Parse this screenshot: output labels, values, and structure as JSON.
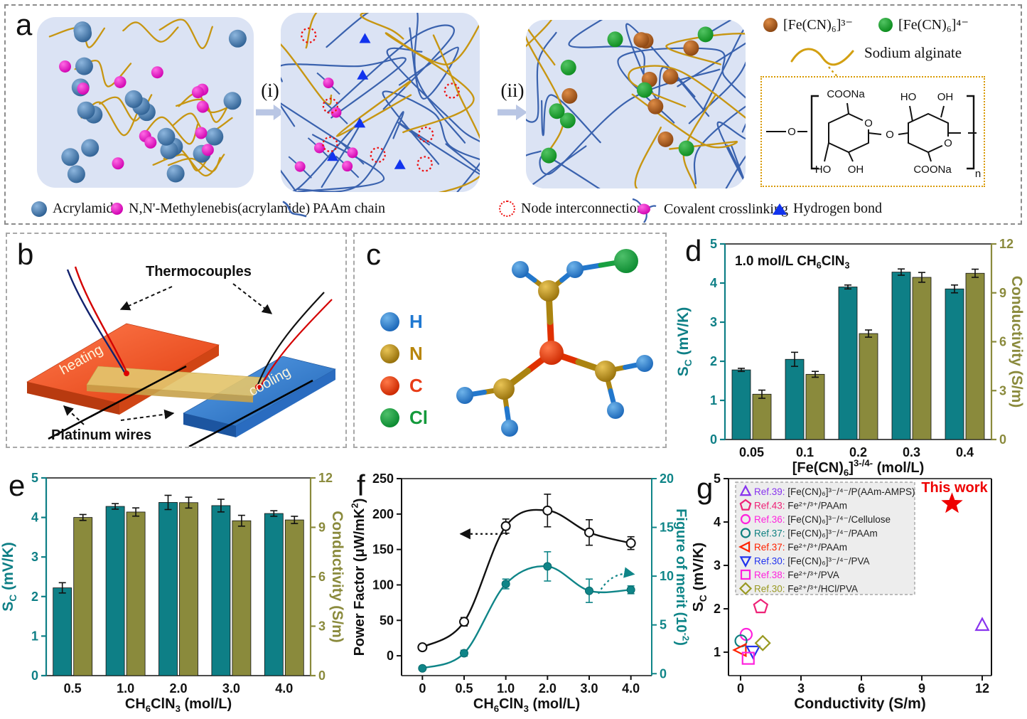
{
  "figure": {
    "panel_labels": {
      "a": "a",
      "b": "b",
      "c": "c",
      "d": "d",
      "e": "e",
      "f": "f",
      "g": "g"
    }
  },
  "panel_a": {
    "top_legend": [
      {
        "name": "ferricyanide",
        "label": "[Fe(CN)₆]³⁻",
        "color": "#b3591d"
      },
      {
        "name": "ferrocyanide",
        "label": "[Fe(CN)₆]⁴⁻",
        "color": "#179a2c"
      }
    ],
    "sodium_alginate_label": "Sodium alginate",
    "structure": {
      "carboxylate": "COONa",
      "ho": "HO",
      "oh": "OH",
      "oxygen": "O",
      "repeat": "n"
    },
    "steps": {
      "i": "(i)",
      "ii": "(ii)"
    },
    "bottom_legend": [
      {
        "name": "acrylamide",
        "label": "Acrylamide"
      },
      {
        "name": "mba",
        "label": "N,N'-Methylenebis(acrylamide)"
      },
      {
        "name": "paam-chain",
        "label": "PAAm chain"
      },
      {
        "name": "node-interconnection",
        "label": "Node interconnection"
      },
      {
        "name": "covalent-crosslinking",
        "label": "Covalent crosslinking"
      },
      {
        "name": "hydrogen-bond",
        "label": "Hydrogen bond"
      }
    ]
  },
  "panel_b": {
    "labels": {
      "thermocouples": "Thermocouples",
      "heating": "heating",
      "cooling": "cooling",
      "platinum": "Platinum  wires"
    }
  },
  "panel_c": {
    "legend": [
      {
        "symbol": "H",
        "color": "#1f78d1"
      },
      {
        "symbol": "N",
        "color": "#b8860b"
      },
      {
        "symbol": "C",
        "color": "#e83c17"
      },
      {
        "symbol": "Cl",
        "color": "#149a3c"
      }
    ]
  },
  "chart_data": [
    {
      "id": "d",
      "type": "bar",
      "title": "1.0 mol/L CH_{6}ClN_{3}",
      "categories": [
        "0.05",
        "0.1",
        "0.2",
        "0.3",
        "0.4"
      ],
      "xlabel": "[Fe(CN)_{6}]^{3-/4-} (mol/L)",
      "left_axis": {
        "label": "S_{C} (mV/K)",
        "min": 0,
        "max": 5,
        "ticks": [
          0,
          1,
          2,
          3,
          4,
          5
        ],
        "color": "#0e7f86"
      },
      "right_axis": {
        "label": "Conductivity (S/m)",
        "min": 0,
        "max": 12,
        "ticks": [
          0,
          3,
          6,
          9,
          12
        ],
        "color": "#8a8a3c"
      },
      "series": [
        {
          "name": "Sc",
          "axis": "left",
          "color": "#0e7f86",
          "values": [
            1.78,
            2.05,
            3.9,
            4.28,
            3.85
          ],
          "errors": [
            0.04,
            0.18,
            0.05,
            0.08,
            0.1
          ]
        },
        {
          "name": "Conductivity",
          "axis": "right",
          "color": "#8a8a3c",
          "values": [
            2.78,
            4.0,
            6.5,
            9.95,
            10.2
          ],
          "errors": [
            0.25,
            0.18,
            0.22,
            0.3,
            0.25
          ]
        }
      ]
    },
    {
      "id": "e",
      "type": "bar",
      "title": "",
      "categories": [
        "0.5",
        "1.0",
        "2.0",
        "3.0",
        "4.0"
      ],
      "xlabel": "CH_{6}ClN_{3}  (mol/L)",
      "left_axis": {
        "label": "S_{C} (mV/K)",
        "min": 0,
        "max": 5,
        "ticks": [
          0,
          1,
          2,
          3,
          4,
          5
        ],
        "color": "#0e7f86"
      },
      "right_axis": {
        "label": "Conductivity (S/m)",
        "min": 0,
        "max": 12,
        "ticks": [
          0,
          3,
          6,
          9,
          12
        ],
        "color": "#8a8a3c"
      },
      "series": [
        {
          "name": "Sc",
          "axis": "left",
          "color": "#0e7f86",
          "values": [
            2.22,
            4.28,
            4.38,
            4.3,
            4.1
          ],
          "errors": [
            0.13,
            0.07,
            0.18,
            0.16,
            0.07
          ]
        },
        {
          "name": "Conductivity",
          "axis": "right",
          "color": "#8a8a3c",
          "values": [
            9.6,
            9.93,
            10.5,
            9.4,
            9.45
          ],
          "errors": [
            0.18,
            0.25,
            0.33,
            0.33,
            0.22
          ]
        }
      ]
    },
    {
      "id": "f",
      "type": "line",
      "categories": [
        "0",
        "0.5",
        "1.0",
        "2.0",
        "3.0",
        "4.0"
      ],
      "xlabel": "CH_{6}ClN_{3}  (mol/L)",
      "left_axis": {
        "label": "Power Factor (μW/mK^{2})",
        "min": -28,
        "max": 250,
        "ticks": [
          0,
          50,
          100,
          150,
          200,
          250
        ],
        "color": "#111111"
      },
      "right_axis": {
        "label": "Figure of merit (10^{-2})",
        "min": -0.2,
        "max": 20,
        "ticks": [
          0,
          5,
          10,
          15,
          20
        ],
        "color": "#0f8588"
      },
      "series": [
        {
          "name": "Power Factor",
          "axis": "left",
          "color": "#111111",
          "marker": "open-circle",
          "values": [
            12,
            48,
            183,
            205,
            174,
            159
          ],
          "errors": [
            4,
            6,
            10,
            23,
            18,
            9
          ]
        },
        {
          "name": "Figure of merit",
          "axis": "right",
          "color": "#0f8588",
          "marker": "filled-circle",
          "values": [
            0.55,
            2.1,
            9.2,
            11.0,
            8.5,
            8.6
          ],
          "errors": [
            0.15,
            0.3,
            0.5,
            1.5,
            1.2,
            0.4
          ]
        }
      ]
    },
    {
      "id": "g",
      "type": "scatter",
      "xlabel": "Conductivity (S/m)",
      "ylabel": "S_{C} (mV/K)",
      "xlim": [
        -0.6,
        12.46
      ],
      "ylim": [
        0.46,
        5.0
      ],
      "xticks": [
        0,
        3,
        6,
        9,
        12
      ],
      "yticks": [
        1,
        2,
        3,
        4,
        5
      ],
      "this_work": {
        "label": "This work",
        "x": 10.5,
        "y": 4.42,
        "color": "#ee0000"
      },
      "points": [
        {
          "ref": "Ref.39",
          "material": "[Fe(CN)₆]³⁻/⁴⁻/P(AAm-AMPS)",
          "marker": "triangle-up",
          "color": "#8833ee",
          "x": 12.0,
          "y": 1.62
        },
        {
          "ref": "Ref.43",
          "material": "Fe²⁺/³⁺/PAAm",
          "marker": "pentagon",
          "color": "#ee2277",
          "x": 1.0,
          "y": 2.05
        },
        {
          "ref": "Ref.36",
          "material": "[Fe(CN)₆]³⁻/⁴⁻/Cellulose",
          "marker": "circle",
          "color": "#ff22dd",
          "x": 0.28,
          "y": 1.41
        },
        {
          "ref": "Ref.37",
          "material": "[Fe(CN)₆]³⁻/⁴⁻/PAAm",
          "marker": "circle",
          "color": "#0f8080",
          "x": 0.02,
          "y": 1.26
        },
        {
          "ref": "Ref.37",
          "material": "Fe²⁺/³⁺/PAAm",
          "marker": "triangle-left",
          "color": "#ff2200",
          "x": 0.02,
          "y": 1.05
        },
        {
          "ref": "Ref.30",
          "material": "[Fe(CN)₆]³⁻/⁴⁻/PVA",
          "marker": "triangle-down",
          "color": "#2233ee",
          "x": 0.62,
          "y": 1.02
        },
        {
          "ref": "Ref.38",
          "material": "Fe²⁺/³⁺/PVA",
          "marker": "square",
          "color": "#ff22dd",
          "x": 0.38,
          "y": 0.86
        },
        {
          "ref": "Ref.30",
          "material": "Fe²⁺/³⁺/HCl/PVA",
          "marker": "diamond",
          "color": "#999922",
          "x": 1.1,
          "y": 1.21
        }
      ]
    }
  ]
}
